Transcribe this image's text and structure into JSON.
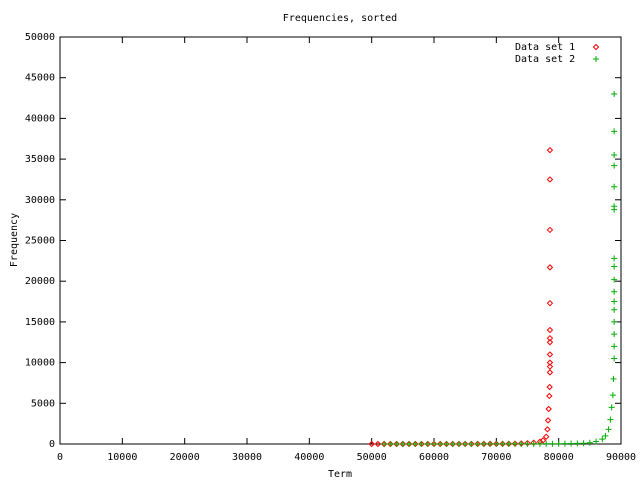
{
  "chart_data": {
    "type": "scatter",
    "title": "Frequencies, sorted",
    "x_label": "Term",
    "y_label": "Frequency",
    "xlim": [
      0,
      90000
    ],
    "ylim": [
      0,
      50000
    ],
    "xticks": [
      0,
      10000,
      20000,
      30000,
      40000,
      50000,
      60000,
      70000,
      80000,
      90000
    ],
    "yticks": [
      0,
      5000,
      10000,
      15000,
      20000,
      25000,
      30000,
      35000,
      40000,
      45000,
      50000
    ],
    "legend_position": "top-right",
    "series": [
      {
        "name": "Data set 1",
        "color": "#ff0000",
        "marker": "diamond",
        "x": [
          50000,
          51000,
          52000,
          53000,
          54000,
          55000,
          56000,
          57000,
          58000,
          59000,
          60000,
          61000,
          62000,
          63000,
          64000,
          65000,
          66000,
          67000,
          68000,
          69000,
          70000,
          71000,
          72000,
          73000,
          74000,
          75000,
          76000,
          77000,
          77500,
          78000,
          78200,
          78300,
          78400,
          78500,
          78550,
          78600,
          78600,
          78600,
          78600,
          78600,
          78600,
          78600,
          78600,
          78600,
          78600,
          78600,
          78600
        ],
        "values": [
          1,
          1,
          1,
          2,
          2,
          2,
          3,
          3,
          4,
          4,
          5,
          5,
          6,
          7,
          8,
          9,
          10,
          12,
          14,
          16,
          18,
          21,
          25,
          40,
          60,
          100,
          160,
          280,
          450,
          900,
          1800,
          2900,
          4300,
          5900,
          7000,
          8800,
          9500,
          10000,
          11000,
          12500,
          13000,
          14000,
          17300,
          21700,
          26300,
          32500,
          36100
        ]
      },
      {
        "name": "Data set 2",
        "color": "#00b000",
        "marker": "plus",
        "x": [
          52000,
          53000,
          54000,
          55000,
          56000,
          57000,
          58000,
          59000,
          60000,
          61000,
          62000,
          63000,
          64000,
          65000,
          66000,
          67000,
          68000,
          69000,
          70000,
          71000,
          72000,
          73000,
          74000,
          75000,
          76000,
          77000,
          78000,
          79000,
          80000,
          81000,
          82000,
          83000,
          84000,
          85000,
          86000,
          87000,
          87500,
          88000,
          88300,
          88500,
          88700,
          88800,
          88900,
          88900,
          88900,
          88900,
          88900,
          88900,
          88900,
          88900,
          88900,
          88900,
          88900,
          88900,
          88900,
          88900,
          88900,
          88900,
          88900
        ],
        "values": [
          1,
          1,
          1,
          1,
          2,
          2,
          2,
          3,
          3,
          3,
          4,
          4,
          5,
          5,
          6,
          7,
          8,
          9,
          10,
          11,
          12,
          14,
          16,
          18,
          20,
          23,
          27,
          32,
          38,
          45,
          55,
          70,
          90,
          150,
          300,
          600,
          1000,
          1800,
          3000,
          4500,
          6000,
          8000,
          10500,
          12000,
          13500,
          15000,
          16500,
          17500,
          18700,
          20200,
          21800,
          22800,
          28800,
          29200,
          31600,
          34200,
          35500,
          38400,
          43000
        ]
      }
    ]
  }
}
